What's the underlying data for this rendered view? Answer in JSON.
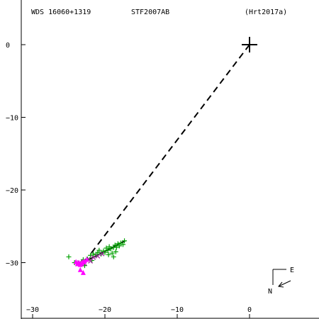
{
  "header": {
    "wds": "WDS 16060+1319",
    "discoverer": "STF2007AB",
    "reference": "(Hrt2017a)"
  },
  "orientation": {
    "east": "E",
    "north": "N"
  },
  "chart_data": {
    "type": "scatter",
    "title": "",
    "xlabel": "",
    "ylabel": "",
    "xlim": [
      -33,
      5
    ],
    "ylim": [
      -37,
      5
    ],
    "x_ticks": [
      -30,
      -20,
      -10,
      0
    ],
    "y_ticks": [
      0,
      -10,
      -20,
      -30
    ],
    "x_tick_labels": [
      "−30",
      "−20",
      "−10",
      "0"
    ],
    "y_tick_labels": [
      "0",
      "−10",
      "−20",
      "−30"
    ],
    "primary": {
      "x": 0,
      "y": 0,
      "marker": "plus-large"
    },
    "connector": {
      "from": [
        0,
        0
      ],
      "to": [
        -22.2,
        -29.1
      ],
      "style": "dashed"
    },
    "orbit_line": {
      "points": [
        [
          -23.6,
          -30.3
        ],
        [
          -17.2,
          -27.0
        ]
      ],
      "color": "#000000"
    },
    "series": [
      {
        "marker": "plus",
        "color": "#00a000",
        "points": [
          [
            -25.0,
            -29.2
          ],
          [
            -24.2,
            -30.0
          ],
          [
            -23.0,
            -29.6
          ],
          [
            -22.4,
            -29.5
          ],
          [
            -22.0,
            -29.0
          ],
          [
            -21.6,
            -28.8
          ],
          [
            -21.2,
            -28.9
          ],
          [
            -21.0,
            -28.6
          ],
          [
            -20.8,
            -28.3
          ],
          [
            -20.5,
            -28.8
          ],
          [
            -20.2,
            -28.4
          ],
          [
            -20.0,
            -28.6
          ],
          [
            -19.8,
            -28.0
          ],
          [
            -19.6,
            -28.3
          ],
          [
            -19.4,
            -27.8
          ],
          [
            -19.2,
            -28.1
          ],
          [
            -19.0,
            -28.7
          ],
          [
            -18.8,
            -27.9
          ],
          [
            -18.6,
            -27.6
          ],
          [
            -18.4,
            -27.9
          ],
          [
            -18.2,
            -27.4
          ],
          [
            -18.0,
            -27.7
          ],
          [
            -17.8,
            -27.3
          ],
          [
            -17.5,
            -27.5
          ],
          [
            -17.3,
            -27.0
          ],
          [
            -18.5,
            -28.5
          ],
          [
            -18.8,
            -29.2
          ],
          [
            -19.5,
            -28.9
          ],
          [
            -22.8,
            -30.4
          ],
          [
            -21.8,
            -29.7
          ]
        ]
      },
      {
        "marker": "x",
        "color": "#a020a0",
        "points": [
          [
            -23.5,
            -30.0
          ],
          [
            -23.2,
            -30.2
          ],
          [
            -23.0,
            -29.9
          ],
          [
            -22.8,
            -30.1
          ],
          [
            -22.3,
            -29.5
          ],
          [
            -21.6,
            -29.3
          ],
          [
            -21.0,
            -29.1
          ],
          [
            -20.4,
            -28.8
          ],
          [
            -22.0,
            -29.8
          ]
        ]
      },
      {
        "marker": "triangle",
        "color": "#ff00ff",
        "points": [
          [
            -23.8,
            -30.2
          ],
          [
            -23.6,
            -30.0
          ],
          [
            -23.4,
            -30.3
          ],
          [
            -23.2,
            -30.1
          ],
          [
            -23.0,
            -29.9
          ],
          [
            -22.8,
            -29.8
          ],
          [
            -22.5,
            -29.6
          ],
          [
            -23.4,
            -31.0
          ],
          [
            -23.0,
            -31.4
          ],
          [
            -24.0,
            -29.9
          ]
        ]
      }
    ],
    "grid": false
  }
}
